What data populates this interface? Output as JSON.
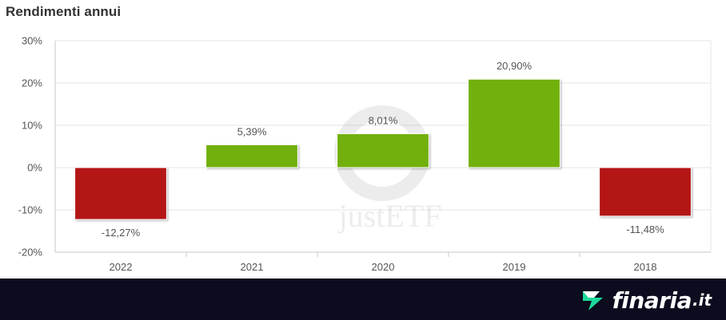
{
  "title": "Rendimenti annui",
  "watermark": "justETF",
  "footer": {
    "brand": "finaria",
    "tld": ".it"
  },
  "colors": {
    "positive": "#72b00a",
    "negative": "#b41414",
    "grid": "#e6e6e6",
    "footer_bg": "#0b0c1e",
    "brand_accent": "#1ed99a"
  },
  "chart_data": {
    "type": "bar",
    "title": "Rendimenti annui",
    "categories": [
      "2022",
      "2021",
      "2020",
      "2019",
      "2018"
    ],
    "values": [
      -12.27,
      5.39,
      8.01,
      20.9,
      -11.48
    ],
    "data_labels": [
      "-12,27%",
      "5,39%",
      "8,01%",
      "20,90%",
      "-11,48%"
    ],
    "y_ticks": [
      30,
      20,
      10,
      0,
      -10,
      -20
    ],
    "y_tick_labels": [
      "30%",
      "20%",
      "10%",
      "0%",
      "-10%",
      "-20%"
    ],
    "ylim": [
      -20,
      30
    ],
    "grid": true,
    "legend": "none",
    "xlabel": "",
    "ylabel": ""
  }
}
